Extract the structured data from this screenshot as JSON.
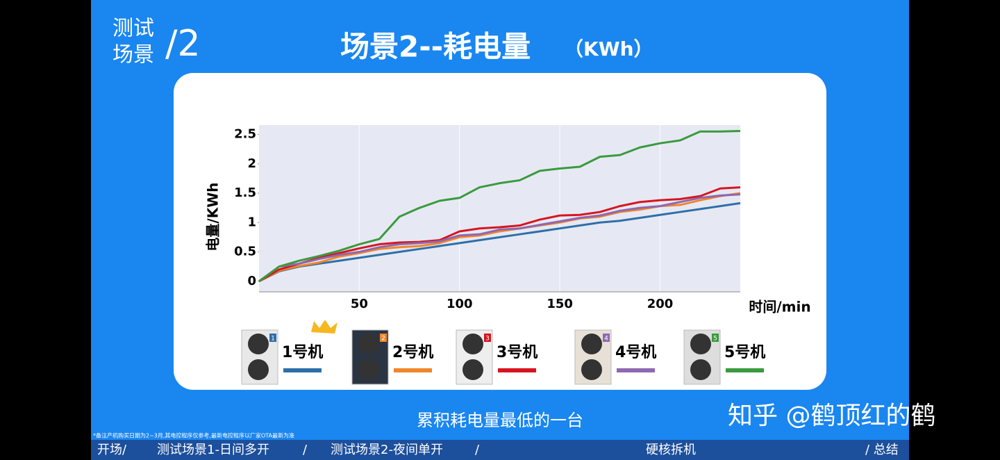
{
  "slide": {
    "section_top": "测试",
    "section_bottom": "场景",
    "section_number": "/2",
    "caption": "累积耗电量最低的一台",
    "watermark": "知乎 @鹤顶红的鹤",
    "footnote": "*备注产机购买日期为2~3月,其电控程序仅参考,最新电控程序以厂家OTA最新为准",
    "nav": [
      "开场/",
      "测试场景1-日间多开",
      "/",
      "测试场景2-夜间单开",
      "/",
      "硬核拆机",
      "/ 总结"
    ],
    "unit_badges": [
      "1",
      "2",
      "3",
      "4",
      "5"
    ]
  },
  "chart_data": {
    "type": "line",
    "title": "场景2--耗电量",
    "unit": "（KWh）",
    "x_label": "时间/min",
    "y_label": "电量/KWh",
    "x": [
      0,
      10,
      20,
      30,
      40,
      50,
      60,
      70,
      80,
      90,
      100,
      110,
      120,
      130,
      140,
      150,
      160,
      170,
      180,
      190,
      200,
      210,
      220,
      230,
      240
    ],
    "series": [
      {
        "name": "1号机",
        "color": "#2e6fa8",
        "values": [
          0,
          0.17,
          0.25,
          0.3,
          0.35,
          0.4,
          0.45,
          0.5,
          0.55,
          0.6,
          0.65,
          0.7,
          0.75,
          0.8,
          0.85,
          0.9,
          0.95,
          1.0,
          1.03,
          1.08,
          1.13,
          1.18,
          1.23,
          1.28,
          1.33
        ]
      },
      {
        "name": "2号机",
        "color": "#f0862a",
        "values": [
          0,
          0.18,
          0.26,
          0.32,
          0.42,
          0.48,
          0.55,
          0.58,
          0.6,
          0.65,
          0.75,
          0.78,
          0.85,
          0.9,
          0.95,
          1.0,
          1.07,
          1.1,
          1.18,
          1.22,
          1.28,
          1.3,
          1.38,
          1.45,
          1.5
        ]
      },
      {
        "name": "3号机",
        "color": "#d7151f",
        "values": [
          0,
          0.2,
          0.3,
          0.4,
          0.48,
          0.56,
          0.63,
          0.66,
          0.67,
          0.7,
          0.85,
          0.9,
          0.92,
          0.95,
          1.05,
          1.12,
          1.13,
          1.18,
          1.28,
          1.35,
          1.38,
          1.4,
          1.45,
          1.58,
          1.6
        ]
      },
      {
        "name": "4号机",
        "color": "#8e68b0",
        "values": [
          0,
          0.25,
          0.3,
          0.38,
          0.45,
          0.5,
          0.58,
          0.63,
          0.65,
          0.68,
          0.78,
          0.8,
          0.88,
          0.9,
          0.96,
          1.02,
          1.08,
          1.12,
          1.2,
          1.25,
          1.28,
          1.35,
          1.42,
          1.46,
          1.48
        ]
      },
      {
        "name": "5号机",
        "color": "#3a9a3e",
        "values": [
          0,
          0.25,
          0.35,
          0.43,
          0.52,
          0.63,
          0.72,
          1.1,
          1.25,
          1.37,
          1.42,
          1.6,
          1.67,
          1.72,
          1.88,
          1.92,
          1.95,
          2.12,
          2.15,
          2.28,
          2.35,
          2.4,
          2.55,
          2.55,
          2.56
        ]
      }
    ],
    "xlim": [
      0,
      240
    ],
    "xticks": [
      50,
      100,
      150,
      200
    ],
    "ylim": [
      -0.18,
      2.66
    ],
    "yticks": [
      0,
      0.5,
      1,
      1.5,
      2,
      2.5
    ],
    "grid": true
  }
}
